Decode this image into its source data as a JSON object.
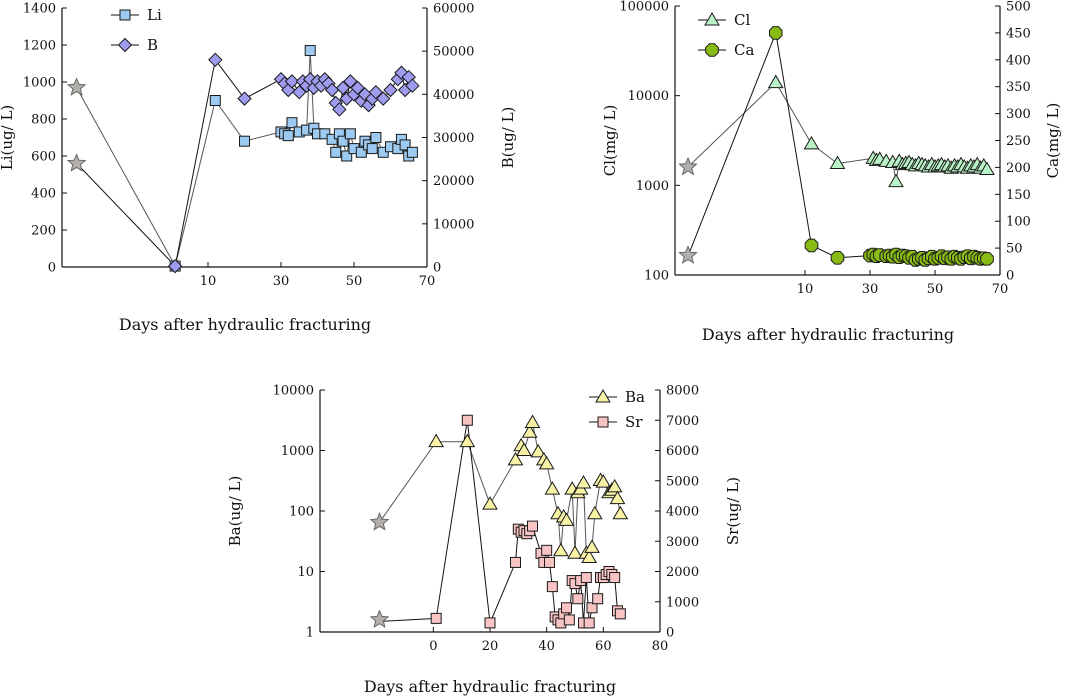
{
  "chart_data": [
    {
      "id": "li-b",
      "type": "scatter",
      "xlabel": "Days after hydraulic fracturing",
      "xlim": [
        -30,
        70
      ],
      "xticks": [
        10,
        30,
        50,
        70
      ],
      "left_axis": {
        "label": "Li(ug/ L)",
        "scale": "linear",
        "range": [
          0,
          1400
        ],
        "ticks": [
          0,
          200,
          400,
          600,
          800,
          1000,
          1200,
          1400
        ]
      },
      "right_axis": {
        "label": "B(ug/ L)",
        "scale": "linear",
        "range": [
          0,
          60000
        ],
        "ticks": [
          0,
          10000,
          20000,
          30000,
          40000,
          50000,
          60000
        ]
      },
      "legend": [
        "Li",
        "B"
      ],
      "star_points": [
        {
          "axis": "left",
          "x": -26,
          "y": 970
        },
        {
          "axis": "left",
          "x": -26,
          "y": 560
        }
      ],
      "series": [
        {
          "name": "Li",
          "axis": "left",
          "marker": "square",
          "color": "#9ccaf0",
          "x": [
            -26,
            1,
            12,
            20,
            30,
            31,
            32,
            33,
            35,
            37,
            38,
            39,
            40,
            42,
            44,
            45,
            46,
            47,
            48,
            49,
            50,
            52,
            53,
            54,
            55,
            56,
            58,
            60,
            62,
            63,
            64,
            65,
            66
          ],
          "y": [
            970,
            5,
            900,
            680,
            730,
            720,
            710,
            780,
            730,
            740,
            1170,
            750,
            720,
            720,
            690,
            620,
            720,
            680,
            600,
            720,
            640,
            620,
            680,
            660,
            640,
            700,
            620,
            650,
            640,
            690,
            660,
            600,
            620
          ]
        },
        {
          "name": "B",
          "axis": "right",
          "marker": "diamond",
          "color": "#9f9cf0",
          "x": [
            -26,
            1,
            12,
            20,
            30,
            31,
            32,
            33,
            35,
            36,
            37,
            38,
            39,
            40,
            41,
            42,
            43,
            44,
            45,
            46,
            47,
            48,
            49,
            50,
            51,
            52,
            53,
            54,
            55,
            56,
            58,
            60,
            62,
            63,
            64,
            65,
            66
          ],
          "y": [
            24000,
            200,
            48000,
            39000,
            43500,
            42500,
            41000,
            43000,
            40500,
            43000,
            42000,
            43500,
            41500,
            43000,
            42000,
            43500,
            42500,
            41000,
            38000,
            36500,
            41500,
            39000,
            43000,
            40000,
            41500,
            38500,
            40000,
            37500,
            39000,
            40500,
            39000,
            41000,
            43500,
            45000,
            41000,
            44000,
            42000
          ]
        }
      ]
    },
    {
      "id": "cl-ca",
      "type": "scatter",
      "xlabel": "Days after hydraulic fracturing",
      "xlim": [
        -30,
        70
      ],
      "xticks": [
        10,
        30,
        50,
        70
      ],
      "left_axis": {
        "label": "Cl(mg/ L)",
        "scale": "log",
        "range": [
          100,
          100000
        ],
        "ticks": [
          100,
          1000,
          10000,
          100000
        ]
      },
      "right_axis": {
        "label": "Ca(mg/ L)",
        "scale": "linear",
        "range": [
          0,
          500
        ],
        "ticks": [
          0,
          50,
          100,
          150,
          200,
          250,
          300,
          350,
          400,
          450,
          500
        ]
      },
      "legend": [
        "Cl",
        "Ca"
      ],
      "star_points": [
        {
          "axis": "left",
          "x": -26,
          "y": 1600
        },
        {
          "axis": "left",
          "x": -26,
          "y": 165
        }
      ],
      "series": [
        {
          "name": "Cl",
          "axis": "left",
          "marker": "triangle",
          "color": "#b8f2c6",
          "x": [
            -26,
            1,
            12,
            20,
            31,
            32,
            33,
            35,
            37,
            38,
            39,
            40,
            41,
            42,
            43,
            44,
            45,
            46,
            47,
            48,
            49,
            50,
            51,
            52,
            53,
            54,
            55,
            56,
            57,
            58,
            59,
            60,
            61,
            62,
            63,
            64,
            65,
            66
          ],
          "y": [
            1600,
            14000,
            2900,
            1750,
            2000,
            1900,
            1950,
            1850,
            1800,
            1100,
            1850,
            1700,
            1750,
            1800,
            1700,
            1650,
            1750,
            1700,
            1650,
            1600,
            1700,
            1600,
            1650,
            1700,
            1600,
            1650,
            1550,
            1650,
            1600,
            1700,
            1600,
            1550,
            1650,
            1600,
            1700,
            1550,
            1650,
            1500
          ]
        },
        {
          "name": "Ca",
          "axis": "right",
          "marker": "octagon",
          "color": "#88bb14",
          "x": [
            -26,
            1,
            12,
            20,
            30,
            31,
            32,
            33,
            35,
            36,
            37,
            38,
            39,
            40,
            41,
            42,
            43,
            44,
            45,
            46,
            47,
            48,
            49,
            50,
            51,
            52,
            53,
            54,
            55,
            56,
            57,
            58,
            59,
            60,
            61,
            62,
            63,
            64,
            65,
            66
          ],
          "y": [
            35,
            450,
            55,
            32,
            36,
            38,
            35,
            37,
            35,
            36,
            34,
            38,
            33,
            36,
            35,
            32,
            34,
            28,
            30,
            32,
            28,
            31,
            34,
            30,
            32,
            35,
            31,
            33,
            30,
            34,
            32,
            30,
            33,
            35,
            31,
            34,
            32,
            30,
            31,
            30
          ]
        }
      ]
    },
    {
      "id": "ba-sr",
      "type": "scatter",
      "xlabel": "Days after hydraulic fracturing",
      "xlim": [
        -40,
        80
      ],
      "xticks": [
        0,
        20,
        40,
        60,
        80
      ],
      "left_axis": {
        "label": "Ba(ug/ L)",
        "scale": "log",
        "range": [
          1,
          10000
        ],
        "ticks": [
          1,
          10,
          100,
          1000,
          10000
        ]
      },
      "right_axis": {
        "label": "Sr(ug/ L)",
        "scale": "linear",
        "range": [
          0,
          8000
        ],
        "ticks": [
          0,
          1000,
          2000,
          3000,
          4000,
          5000,
          6000,
          7000,
          8000
        ]
      },
      "legend": [
        "Ba",
        "Sr"
      ],
      "star_points": [
        {
          "axis": "left",
          "x": -19,
          "y": 65
        },
        {
          "axis": "left",
          "x": -19,
          "y": 1.6
        }
      ],
      "series": [
        {
          "name": "Ba",
          "axis": "left",
          "marker": "triangle",
          "color": "#f7f2a6",
          "x": [
            -19,
            1,
            12,
            20,
            29,
            31,
            32,
            34,
            35,
            37,
            39,
            40,
            42,
            44,
            45,
            46,
            47,
            49,
            50,
            51,
            52,
            53,
            54,
            55,
            56,
            57,
            59,
            60,
            62,
            63,
            64,
            65,
            66
          ],
          "y": [
            65,
            1400,
            1400,
            130,
            700,
            1200,
            1000,
            2000,
            2900,
            950,
            700,
            600,
            230,
            90,
            22,
            80,
            70,
            230,
            20,
            200,
            230,
            290,
            20,
            17,
            25,
            90,
            320,
            300,
            200,
            220,
            250,
            160,
            90
          ]
        },
        {
          "name": "Sr",
          "axis": "right",
          "marker": "square",
          "color": "#f7c3c3",
          "x": [
            -19,
            1,
            12,
            20,
            29,
            30,
            31,
            32,
            33,
            34,
            35,
            38,
            39,
            40,
            41,
            42,
            43,
            44,
            45,
            46,
            47,
            48,
            49,
            50,
            51,
            52,
            53,
            54,
            55,
            56,
            58,
            59,
            60,
            61,
            62,
            63,
            64,
            65,
            66
          ],
          "y": [
            350,
            450,
            7000,
            300,
            2300,
            3400,
            3300,
            3350,
            3250,
            3350,
            3500,
            2600,
            2300,
            2700,
            2300,
            1500,
            500,
            400,
            300,
            600,
            800,
            400,
            1700,
            1600,
            1100,
            1700,
            300,
            1800,
            300,
            800,
            1100,
            1800,
            1800,
            1900,
            2000,
            1900,
            1800,
            700,
            600
          ]
        }
      ]
    }
  ]
}
